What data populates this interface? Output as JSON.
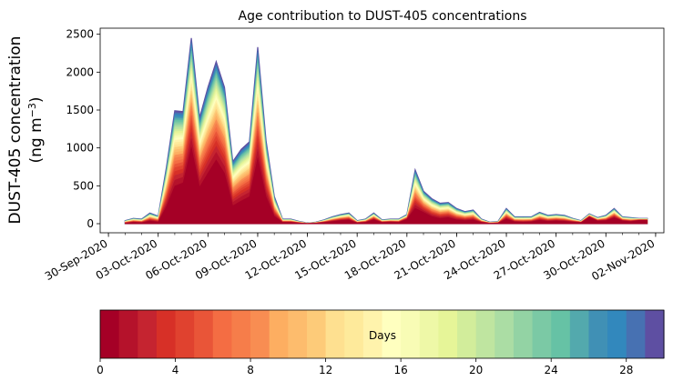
{
  "chart_data": {
    "type": "area",
    "title": "Age contribution to DUST-405 concentrations",
    "ylabel_line1": "DUST-405 concentration",
    "ylabel_line2": "(ng m",
    "ylabel_unit_exp": "−3",
    "ylabel_close": ")",
    "xlabel": "",
    "ylim": [
      -120,
      2580
    ],
    "y_ticks": [
      0,
      500,
      1000,
      1500,
      2000,
      2500
    ],
    "x_start_day": -0.5,
    "x_end_day": 33.5,
    "x_ticks": [
      {
        "day": 0,
        "label": "30-Sep-2020"
      },
      {
        "day": 3,
        "label": "03-Oct-2020"
      },
      {
        "day": 6,
        "label": "06-Oct-2020"
      },
      {
        "day": 9,
        "label": "09-Oct-2020"
      },
      {
        "day": 12,
        "label": "12-Oct-2020"
      },
      {
        "day": 15,
        "label": "15-Oct-2020"
      },
      {
        "day": 18,
        "label": "18-Oct-2020"
      },
      {
        "day": 21,
        "label": "21-Oct-2020"
      },
      {
        "day": 24,
        "label": "24-Oct-2020"
      },
      {
        "day": 27,
        "label": "27-Oct-2020"
      },
      {
        "day": 30,
        "label": "30-Oct-2020"
      },
      {
        "day": 33,
        "label": "02-Nov-2020"
      }
    ],
    "x_minor_step_days": 1,
    "series_x_days": [
      1,
      1.5,
      2,
      2.5,
      3,
      3.5,
      4,
      4.5,
      5,
      5.5,
      6,
      6.5,
      7,
      7.5,
      8,
      8.5,
      9,
      9.5,
      10,
      10.5,
      11,
      11.5,
      12,
      12.5,
      13,
      13.5,
      14,
      14.5,
      15,
      15.5,
      16,
      16.5,
      17,
      17.5,
      18,
      18.5,
      19,
      19.5,
      20,
      20.5,
      21,
      21.5,
      22,
      22.5,
      23,
      23.5,
      24,
      24.5,
      25,
      25.5,
      26,
      26.5,
      27,
      27.5,
      28,
      28.5,
      29,
      29.5,
      30,
      30.5,
      31,
      31.5,
      32,
      32.5
    ],
    "total_concentration": [
      40,
      70,
      60,
      140,
      100,
      750,
      1490,
      1480,
      2450,
      1400,
      1800,
      2140,
      1800,
      820,
      980,
      1080,
      2330,
      1100,
      360,
      60,
      60,
      30,
      10,
      20,
      50,
      90,
      120,
      140,
      40,
      60,
      140,
      50,
      60,
      60,
      120,
      710,
      430,
      330,
      270,
      280,
      200,
      160,
      180,
      60,
      20,
      30,
      200,
      90,
      90,
      90,
      150,
      110,
      120,
      110,
      70,
      40,
      130,
      80,
      110,
      200,
      90,
      80,
      70,
      70
    ],
    "fresh_contribution": [
      0,
      10,
      5,
      20,
      10,
      150,
      350,
      400,
      800,
      350,
      500,
      650,
      500,
      150,
      200,
      250,
      650,
      250,
      60,
      10,
      10,
      5,
      2,
      5,
      10,
      20,
      30,
      35,
      5,
      10,
      40,
      10,
      15,
      10,
      50,
      130,
      110,
      60,
      40,
      50,
      30,
      25,
      30,
      10,
      3,
      5,
      40,
      15,
      10,
      15,
      30,
      20,
      25,
      20,
      15,
      10,
      80,
      30,
      30,
      60,
      30,
      20,
      40,
      40
    ],
    "colorbar": {
      "label": "Days",
      "min": 0,
      "max": 30,
      "levels": 30,
      "ticks": [
        0,
        4,
        8,
        12,
        16,
        20,
        24,
        28
      ],
      "colors": [
        "#a50026",
        "#b5122b",
        "#c52430",
        "#d73027",
        "#e0422f",
        "#e95538",
        "#f46d43",
        "#f67d4a",
        "#f88d52",
        "#fdae61",
        "#fdbc6d",
        "#fdcb79",
        "#fee090",
        "#feea9b",
        "#fff3ac",
        "#ffffbf",
        "#f8fcb5",
        "#eef8a7",
        "#e6f598",
        "#d2ed9b",
        "#bfe5a0",
        "#abdda4",
        "#93d3a4",
        "#7bc9a5",
        "#66c2a5",
        "#53a9ad",
        "#4090b5",
        "#3288bd",
        "#4771b2",
        "#5e4fa2"
      ]
    }
  }
}
